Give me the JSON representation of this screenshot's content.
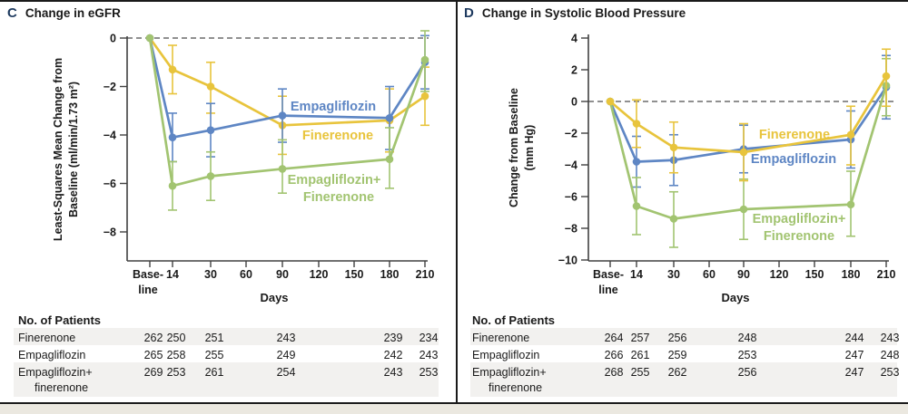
{
  "colors": {
    "empagliflozin_blue": "#5e86c4",
    "finerenone_gold": "#e8c43c",
    "combination_green": "#a2c471",
    "panel_letter_navy": "#1e3a5f",
    "text_black": "#1a1a1a",
    "axis_gray": "#414141",
    "zero_dash_gray": "#6b6b6b",
    "table_band_gray": "#f2f1ef",
    "bottom_strip_cream": "#ebe8e0"
  },
  "chart_data": [
    {
      "type": "line",
      "panel_letter": "C",
      "title": "Change in eGFR",
      "ylabel_lines": [
        "Least-Squares Mean Change from",
        "Baseline (ml/min/1.73 m²)"
      ],
      "xlabel": "Days",
      "yticks": [
        0,
        -2,
        -4,
        -6,
        -8
      ],
      "ylim": [
        -9.2,
        0.5
      ],
      "xticks": [
        "Baseline",
        "14",
        "30",
        "60",
        "90",
        "120",
        "150",
        "180",
        "210"
      ],
      "baseline_tick_lines": [
        "Base-",
        "line"
      ],
      "x_days": [
        "Baseline",
        "14",
        "30",
        "90",
        "180",
        "210"
      ],
      "zero_reference_line": true,
      "grid": false,
      "legend_position": "inline-right",
      "series": [
        {
          "name": "Finerenone",
          "color": "#e8c43c",
          "label_lines": [
            "Finerenone"
          ],
          "values": [
            0,
            -1.3,
            -2.0,
            -3.6,
            -3.4,
            -2.4
          ],
          "err_upper": [
            null,
            -0.3,
            -1.0,
            -2.4,
            -2.1,
            -1.2
          ],
          "err_lower": [
            null,
            -2.3,
            -3.1,
            -4.8,
            -4.7,
            -3.6
          ]
        },
        {
          "name": "Empagliflozin",
          "color": "#5e86c4",
          "label_lines": [
            "Empagliflozin"
          ],
          "values": [
            0,
            -4.1,
            -3.8,
            -3.2,
            -3.3,
            -1.0
          ],
          "err_upper": [
            null,
            -3.1,
            -2.7,
            -2.1,
            -2.0,
            0.1
          ],
          "err_lower": [
            null,
            -5.1,
            -4.9,
            -4.3,
            -4.6,
            -2.1
          ]
        },
        {
          "name": "Empagliflozin+Finerenone",
          "color": "#a2c471",
          "label_lines": [
            "Empagliflozin+",
            "Finerenone"
          ],
          "values": [
            0,
            -6.1,
            -5.7,
            -5.4,
            -5.0,
            -0.9
          ],
          "err_upper": [
            null,
            -5.1,
            -4.7,
            -4.2,
            -3.7,
            0.3
          ],
          "err_lower": [
            null,
            -7.1,
            -6.7,
            -6.4,
            -6.2,
            -2.2
          ]
        }
      ],
      "patients_table": {
        "header": "No. of Patients",
        "rows": [
          {
            "label_lines": [
              "Finerenone"
            ],
            "values": [
              262,
              250,
              251,
              243,
              239,
              234
            ],
            "shaded": true
          },
          {
            "label_lines": [
              "Empagliflozin"
            ],
            "values": [
              265,
              258,
              255,
              249,
              242,
              243
            ],
            "shaded": false
          },
          {
            "label_lines": [
              "Empagliflozin+",
              "finerenone"
            ],
            "values": [
              269,
              253,
              261,
              254,
              243,
              253
            ],
            "shaded": true
          }
        ]
      }
    },
    {
      "type": "line",
      "panel_letter": "D",
      "title": "Change in Systolic Blood Pressure",
      "ylabel_lines": [
        "Change from Baseline",
        "(mm Hg)"
      ],
      "xlabel": "Days",
      "yticks": [
        4,
        2,
        0,
        -2,
        -4,
        -6,
        -8,
        -10
      ],
      "ylim": [
        -10.2,
        4.3
      ],
      "xticks": [
        "Baseline",
        "14",
        "30",
        "60",
        "90",
        "120",
        "150",
        "180",
        "210"
      ],
      "baseline_tick_lines": [
        "Base-",
        "line"
      ],
      "x_days": [
        "Baseline",
        "14",
        "30",
        "90",
        "180",
        "210"
      ],
      "zero_reference_line": true,
      "grid": false,
      "legend_position": "inline-right",
      "series": [
        {
          "name": "Empagliflozin",
          "color": "#5e86c4",
          "label_lines": [
            "Empagliflozin"
          ],
          "values": [
            0,
            -3.8,
            -3.7,
            -3.0,
            -2.4,
            0.9
          ],
          "err_upper": [
            null,
            -2.2,
            -2.1,
            -1.5,
            -0.6,
            2.9
          ],
          "err_lower": [
            null,
            -5.4,
            -5.3,
            -4.5,
            -4.2,
            -1.1
          ]
        },
        {
          "name": "Empagliflozin+Finerenone",
          "color": "#a2c471",
          "label_lines": [
            "Empagliflozin+",
            "Finerenone"
          ],
          "values": [
            0,
            -6.6,
            -7.4,
            -6.8,
            -6.5,
            1.0
          ],
          "err_upper": [
            null,
            -4.8,
            -5.7,
            -4.9,
            -4.4,
            2.7
          ],
          "err_lower": [
            null,
            -8.4,
            -9.2,
            -8.7,
            -8.5,
            -0.9
          ]
        },
        {
          "name": "Finerenone",
          "color": "#e8c43c",
          "label_lines": [
            "Finerenone"
          ],
          "values": [
            0,
            -1.4,
            -2.9,
            -3.2,
            -2.1,
            1.6
          ],
          "err_upper": [
            null,
            0.1,
            -1.3,
            -1.4,
            -0.3,
            3.3
          ],
          "err_lower": [
            null,
            -2.9,
            -4.5,
            -5.0,
            -4.0,
            -0.3
          ]
        }
      ],
      "patients_table": {
        "header": "No. of Patients",
        "rows": [
          {
            "label_lines": [
              "Finerenone"
            ],
            "values": [
              264,
              257,
              256,
              248,
              244,
              243
            ],
            "shaded": true
          },
          {
            "label_lines": [
              "Empagliflozin"
            ],
            "values": [
              266,
              261,
              259,
              253,
              247,
              248
            ],
            "shaded": false
          },
          {
            "label_lines": [
              "Empagliflozin+",
              "finerenone"
            ],
            "values": [
              268,
              255,
              262,
              256,
              247,
              253
            ],
            "shaded": true
          }
        ]
      }
    }
  ]
}
